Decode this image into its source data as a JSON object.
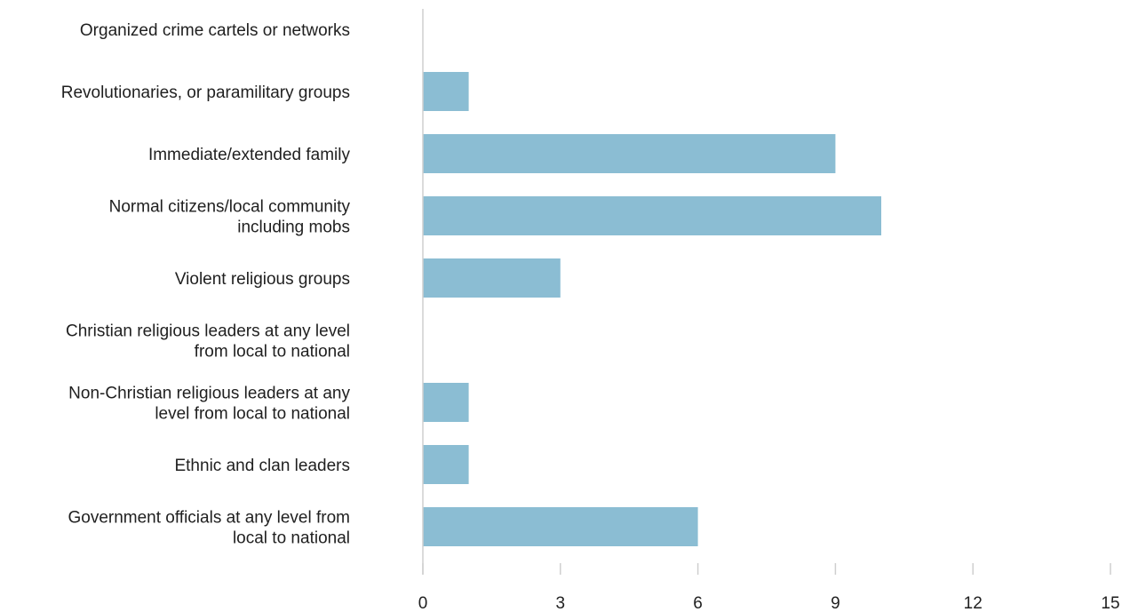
{
  "chart_data": {
    "type": "bar",
    "orientation": "horizontal",
    "categories": [
      [
        "Organized crime cartels or networks"
      ],
      [
        "Revolutionaries, or paramilitary groups"
      ],
      [
        "Immediate/extended family"
      ],
      [
        "Normal citizens/local community",
        "including mobs"
      ],
      [
        "Violent religious groups"
      ],
      [
        "Christian religious leaders at any level",
        "from local to national"
      ],
      [
        "Non-Christian religious leaders at any",
        "level from local to national"
      ],
      [
        "Ethnic and clan leaders"
      ],
      [
        "Government officials at any level from",
        "local to national"
      ]
    ],
    "values": [
      0,
      1,
      9,
      10,
      3,
      0,
      1,
      1,
      6
    ],
    "xlim": [
      0,
      15
    ],
    "xticks": [
      0,
      3,
      6,
      9,
      12,
      15
    ],
    "grid": false,
    "legend": "none",
    "colors": {
      "bar": "#8bbdd3",
      "axis": "#cfcfcf",
      "text": "#1f1f1f"
    }
  }
}
